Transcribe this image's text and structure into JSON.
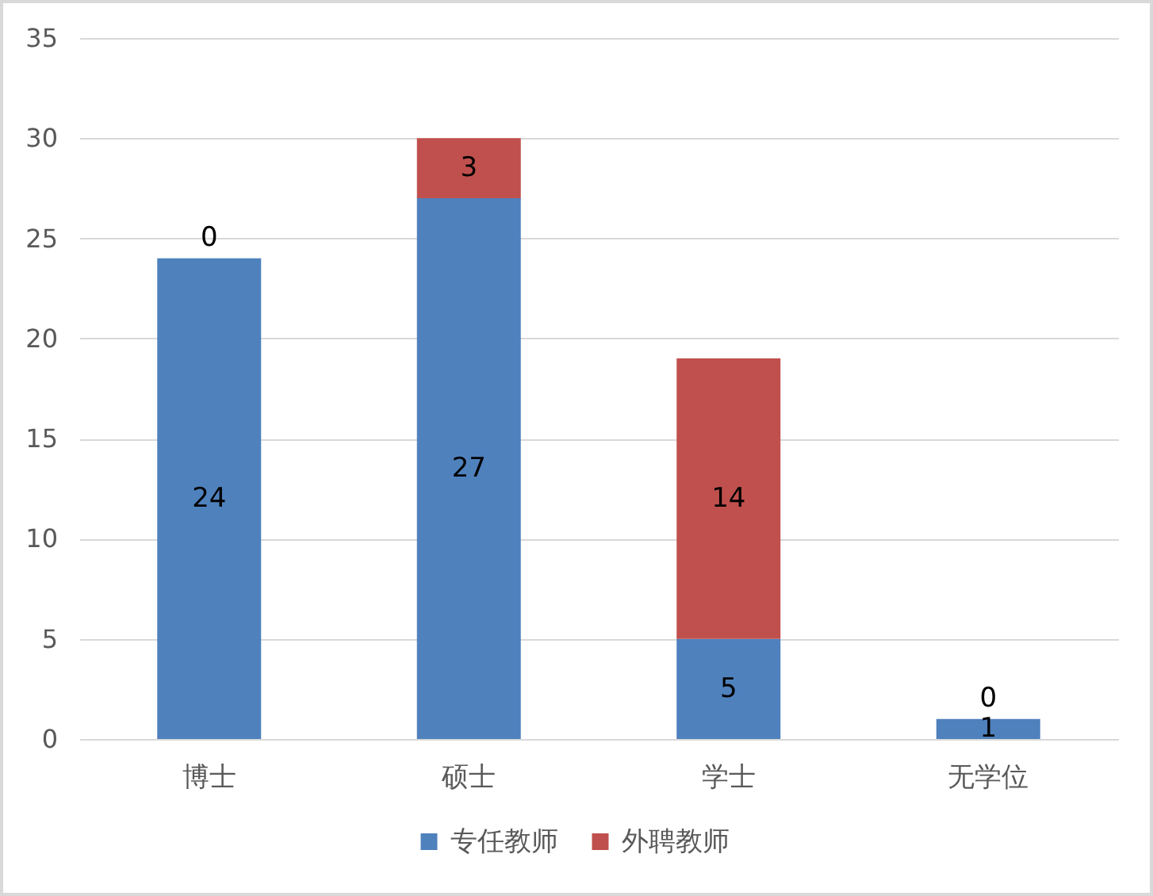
{
  "chart_data": {
    "type": "bar",
    "stacked": true,
    "categories": [
      "博士",
      "硕士",
      "学士",
      "无学位"
    ],
    "series": [
      {
        "name": "专任教师",
        "color": "#4f81bd",
        "values": [
          24,
          27,
          5,
          1
        ]
      },
      {
        "name": "外聘教师",
        "color": "#c0504d",
        "values": [
          0,
          3,
          14,
          0
        ]
      }
    ],
    "ylim": [
      0,
      35
    ],
    "yticks": [
      0,
      5,
      10,
      15,
      20,
      25,
      30,
      35
    ],
    "grid": "y",
    "legend": "bottom",
    "data_labels": true
  }
}
